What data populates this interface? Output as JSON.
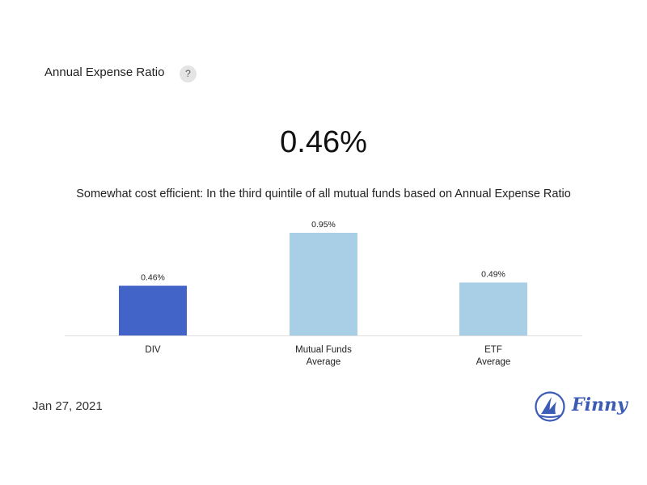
{
  "header": {
    "title": "Annual Expense Ratio",
    "help_label": "?"
  },
  "metric": {
    "value": "0.46%",
    "description": "Somewhat cost efficient: In the third quintile of all mutual funds based on Annual Expense Ratio"
  },
  "chart_data": {
    "type": "bar",
    "categories": [
      [
        "DIV"
      ],
      [
        "Mutual Funds",
        "Average"
      ],
      [
        "ETF",
        "Average"
      ]
    ],
    "values": [
      0.46,
      0.95,
      0.49
    ],
    "value_labels": [
      "0.46%",
      "0.95%",
      "0.49%"
    ],
    "colors": [
      "#4263c8",
      "#a8cfe6",
      "#a8cfe6"
    ],
    "ylim": [
      0,
      0.95
    ],
    "title": "",
    "xlabel": "",
    "ylabel": "",
    "grid": false
  },
  "footer": {
    "date": "Jan 27, 2021",
    "brand": "Finny",
    "brand_color": "#3b5bb5"
  }
}
